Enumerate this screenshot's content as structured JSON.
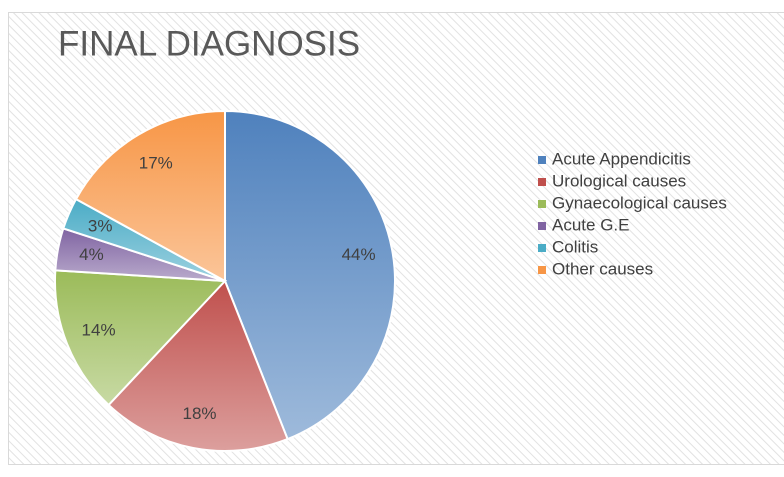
{
  "chart_data": {
    "type": "pie",
    "title": "FINAL DIAGNOSIS",
    "categories": [
      "Acute Appendicitis",
      "Urological causes",
      "Gynaecological causes",
      "Acute G.E",
      "Colitis",
      "Other causes"
    ],
    "values": [
      44,
      18,
      14,
      4,
      3,
      17
    ],
    "value_labels": [
      "44%",
      "18%",
      "14%",
      "4%",
      "3%",
      "17%"
    ],
    "colors": [
      "#4f81bd",
      "#c0504d",
      "#9bbb59",
      "#8064a2",
      "#4bacc6",
      "#f79646"
    ],
    "legend": "right"
  }
}
